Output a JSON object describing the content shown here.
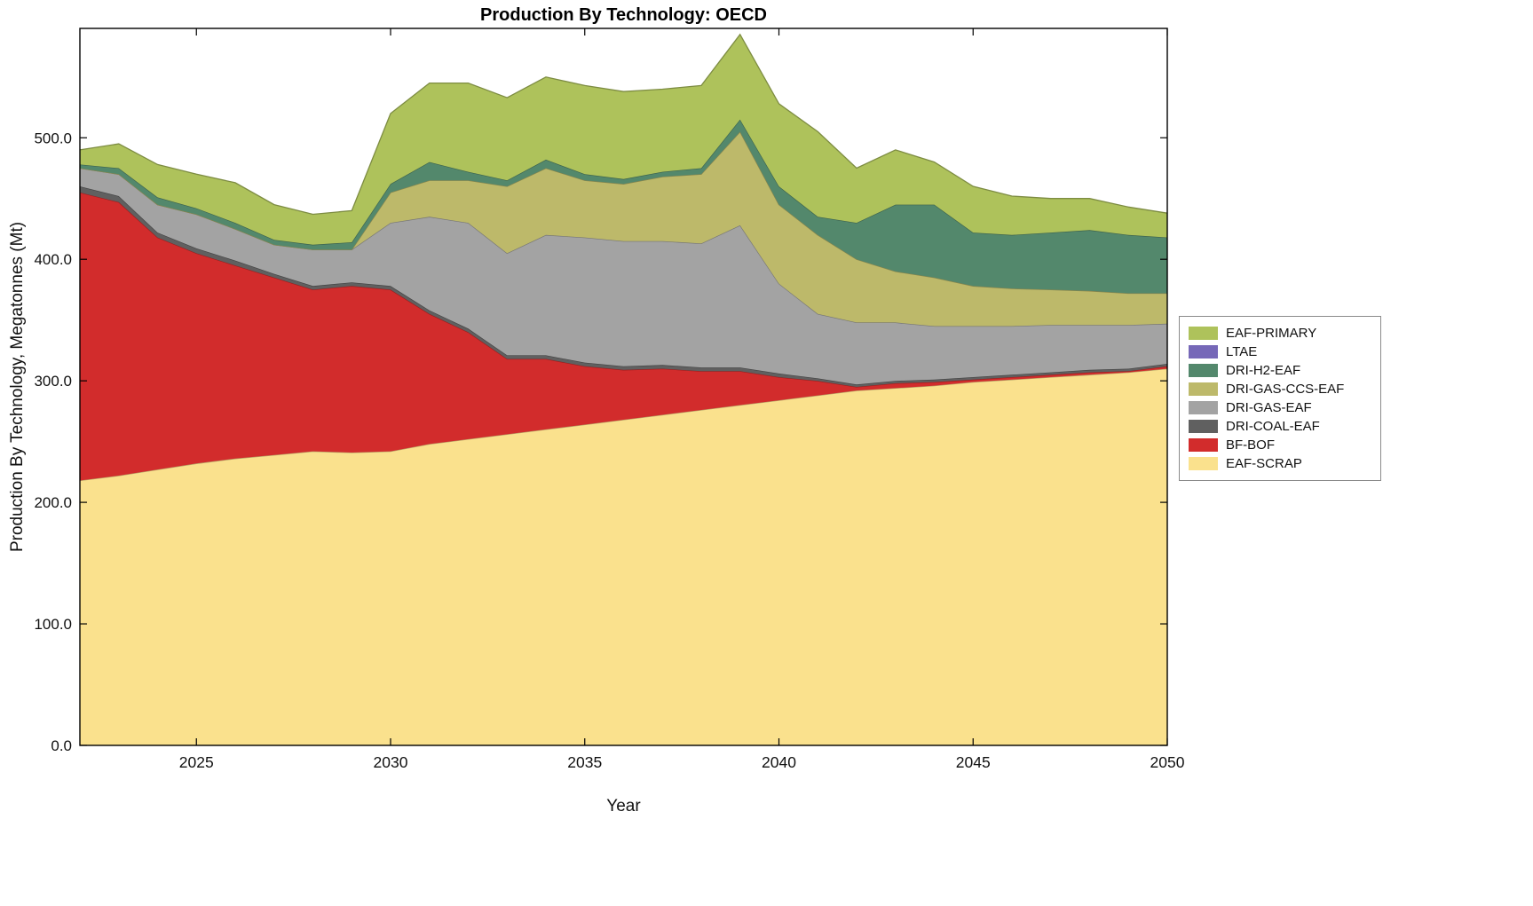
{
  "chart_data": {
    "type": "area",
    "stacked": true,
    "title": "Production By Technology: OECD",
    "xlabel": "Year",
    "ylabel": "Production By Technology, Megatonnes (Mt)",
    "xlim": [
      2022,
      2050
    ],
    "ylim": [
      0,
      590
    ],
    "grid": false,
    "legend_position": "right-outside",
    "x_ticks": [
      2025,
      2030,
      2035,
      2040,
      2045,
      2050
    ],
    "x_tick_labels": [
      "2025",
      "2030",
      "2035",
      "2040",
      "2045",
      "2050"
    ],
    "y_ticks": [
      0,
      100,
      200,
      300,
      400,
      500
    ],
    "y_tick_labels": [
      "0.0",
      "100.0",
      "200.0",
      "300.0",
      "400.0",
      "500.0"
    ],
    "x": [
      2022,
      2023,
      2024,
      2025,
      2026,
      2027,
      2028,
      2029,
      2030,
      2031,
      2032,
      2033,
      2034,
      2035,
      2036,
      2037,
      2038,
      2039,
      2040,
      2041,
      2042,
      2043,
      2044,
      2045,
      2046,
      2047,
      2048,
      2049,
      2050
    ],
    "series": [
      {
        "name": "EAF-SCRAP",
        "color": "#FAE18D",
        "values": [
          218,
          222,
          227,
          232,
          236,
          239,
          242,
          241,
          242,
          248,
          252,
          256,
          260,
          264,
          268,
          272,
          276,
          280,
          284,
          288,
          292,
          294,
          296,
          299,
          301,
          303,
          305,
          307,
          310
        ]
      },
      {
        "name": "BF-BOF",
        "color": "#D22C2C",
        "values": [
          237,
          225,
          191,
          173,
          159,
          146,
          133,
          137,
          133,
          107,
          88,
          62,
          58,
          48,
          41,
          38,
          32,
          28,
          19,
          12,
          3,
          4,
          3,
          2,
          2,
          2,
          2,
          1,
          2
        ]
      },
      {
        "name": "DRI-COAL-EAF",
        "color": "#606060",
        "values": [
          5,
          5,
          4,
          4,
          4,
          3,
          3,
          3,
          3,
          3,
          3,
          3,
          3,
          3,
          3,
          3,
          3,
          3,
          3,
          2,
          2,
          2,
          2,
          2,
          2,
          2,
          2,
          2,
          2
        ]
      },
      {
        "name": "DRI-GAS-EAF",
        "color": "#A3A3A3",
        "values": [
          15,
          18,
          23,
          28,
          26,
          24,
          30,
          27,
          52,
          77,
          87,
          84,
          99,
          103,
          103,
          102,
          102,
          117,
          74,
          53,
          51,
          48,
          44,
          42,
          40,
          39,
          37,
          36,
          33
        ]
      },
      {
        "name": "DRI-GAS-CCS-EAF",
        "color": "#BDB96A",
        "values": [
          0,
          0,
          0,
          0,
          0,
          0,
          0,
          0,
          25,
          30,
          35,
          55,
          55,
          47,
          47,
          53,
          57,
          77,
          65,
          65,
          52,
          42,
          40,
          33,
          31,
          29,
          28,
          26,
          25
        ]
      },
      {
        "name": "DRI-H2-EAF",
        "color": "#53886C",
        "values": [
          3,
          5,
          6,
          5,
          5,
          4,
          4,
          6,
          7,
          15,
          7,
          5,
          7,
          5,
          4,
          4,
          5,
          10,
          15,
          15,
          30,
          55,
          60,
          44,
          44,
          47,
          50,
          48,
          46
        ]
      },
      {
        "name": "LTAE",
        "color": "#7668B8",
        "values": [
          0,
          0,
          0,
          0,
          0,
          0,
          0,
          0,
          0,
          0,
          0,
          0,
          0,
          0,
          0,
          0,
          0,
          0,
          0,
          0,
          0,
          0,
          0,
          0,
          0,
          0,
          0,
          0,
          0
        ]
      },
      {
        "name": "EAF-PRIMARY",
        "color": "#AEC25B",
        "values": [
          12,
          20,
          27,
          28,
          33,
          29,
          25,
          26,
          58,
          65,
          73,
          68,
          68,
          73,
          72,
          68,
          68,
          70,
          68,
          70,
          45,
          45,
          35,
          38,
          32,
          28,
          26,
          23,
          20
        ]
      }
    ],
    "legend": [
      {
        "label": "EAF-PRIMARY",
        "color": "#AEC25B"
      },
      {
        "label": "LTAE",
        "color": "#7668B8"
      },
      {
        "label": "DRI-H2-EAF",
        "color": "#53886C"
      },
      {
        "label": "DRI-GAS-CCS-EAF",
        "color": "#BDB96A"
      },
      {
        "label": "DRI-GAS-EAF",
        "color": "#A3A3A3"
      },
      {
        "label": "DRI-COAL-EAF",
        "color": "#606060"
      },
      {
        "label": "BF-BOF",
        "color": "#D22C2C"
      },
      {
        "label": "EAF-SCRAP",
        "color": "#FAE18D"
      }
    ]
  }
}
